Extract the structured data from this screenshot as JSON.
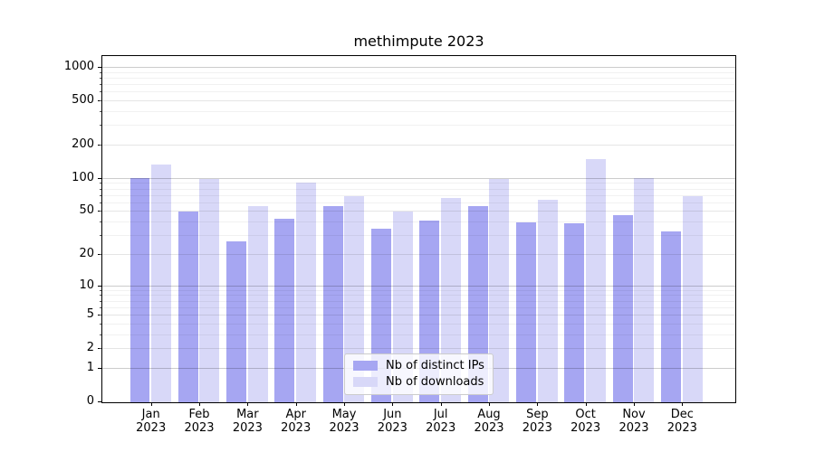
{
  "chart_data": {
    "type": "bar",
    "title": "methimpute 2023",
    "xlabel": "",
    "ylabel": "",
    "year": "2023",
    "categories": [
      "Jan",
      "Feb",
      "Mar",
      "Apr",
      "May",
      "Jun",
      "Jul",
      "Aug",
      "Sep",
      "Oct",
      "Nov",
      "Dec"
    ],
    "series": [
      {
        "name": "Nb of distinct IPs",
        "color": "#a6a6f2",
        "values": [
          102,
          50,
          27,
          43,
          57,
          35,
          42,
          57,
          40,
          39,
          47,
          33
        ]
      },
      {
        "name": "Nb of downloads",
        "color": "#d8d8f8",
        "values": [
          135,
          100,
          56,
          92,
          70,
          50,
          67,
          100,
          64,
          152,
          101,
          70
        ]
      }
    ],
    "yscale": "log1p",
    "ylim": [
      0,
      1250
    ],
    "yticks": [
      0,
      1,
      2,
      5,
      10,
      20,
      50,
      100,
      200,
      500,
      1000
    ],
    "ytick_labels": [
      "0",
      "1",
      "2",
      "5",
      "10",
      "20",
      "50",
      "100",
      "200",
      "500",
      "1000"
    ],
    "grid": "on",
    "legend_position": "lower center"
  }
}
